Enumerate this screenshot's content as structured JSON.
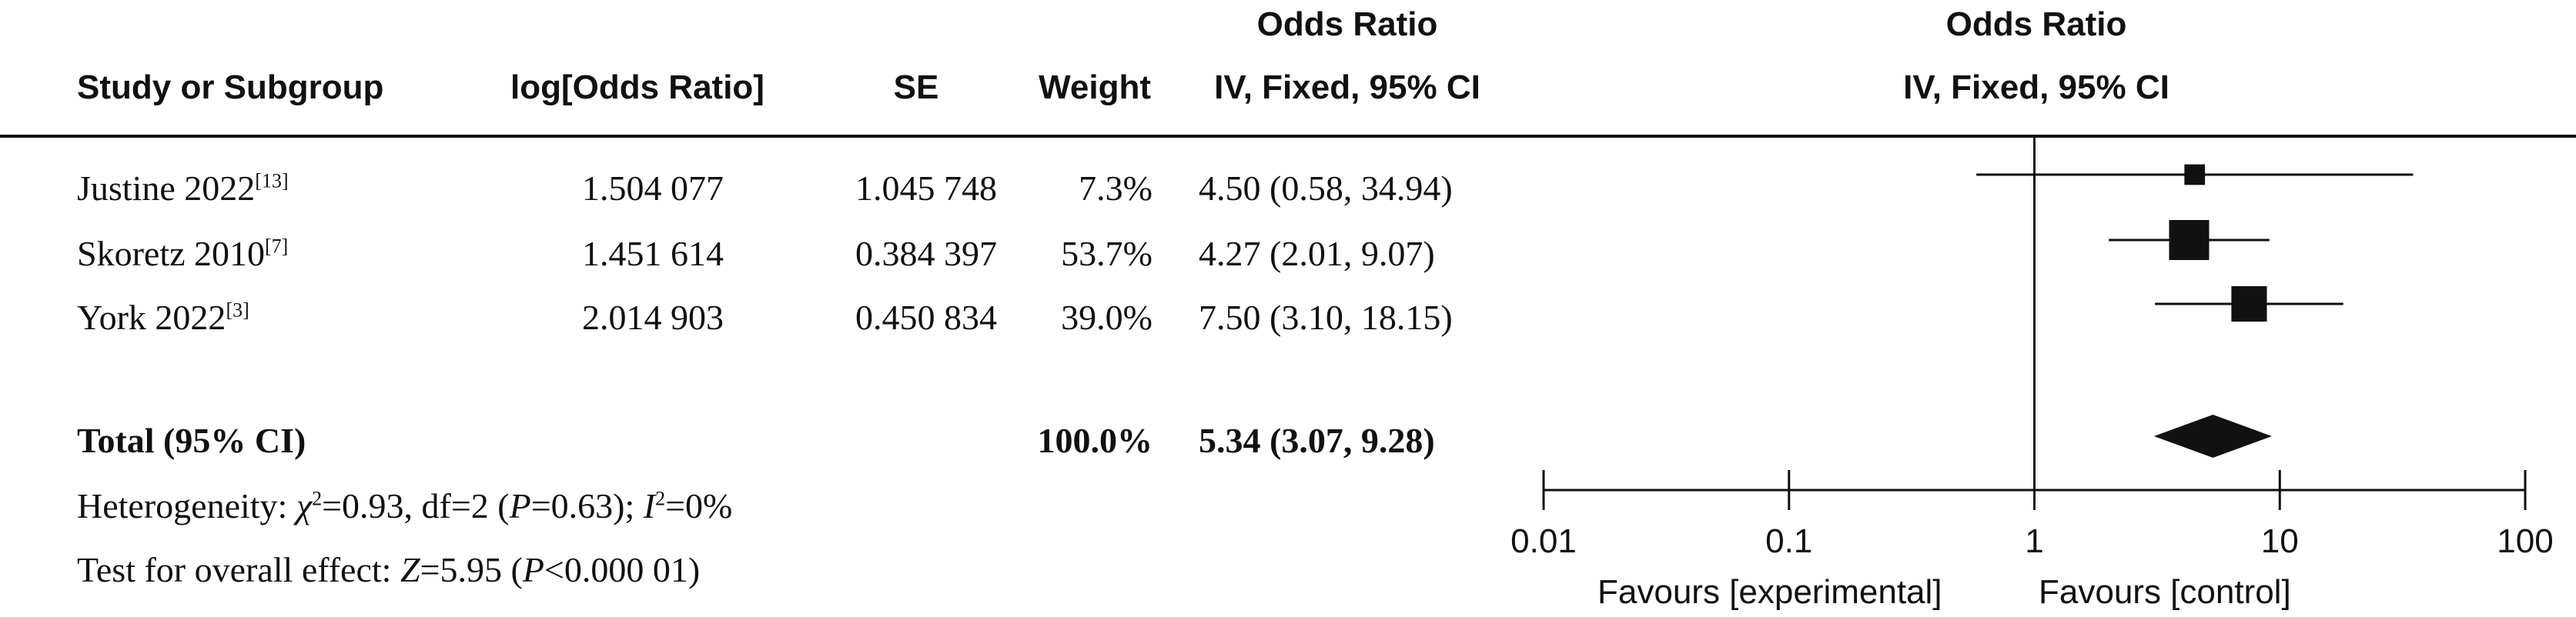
{
  "headers": {
    "study": "Study or Subgroup",
    "log_or": "log[Odds Ratio]",
    "se": "SE",
    "weight": "Weight",
    "or_title": "Odds Ratio",
    "or_method": "IV, Fixed, 95% CI",
    "plot_title": "Odds Ratio",
    "plot_method": "IV, Fixed, 95% CI"
  },
  "studies": [
    {
      "name": "Justine 2022",
      "ref": "[13]",
      "log_or": "1.504 077",
      "se": "1.045 748",
      "weight": "7.3%",
      "ci_text": "4.50 (0.58, 34.94)"
    },
    {
      "name": "Skoretz 2010",
      "ref": "[7]",
      "log_or": "1.451 614",
      "se": "0.384 397",
      "weight": "53.7%",
      "ci_text": "4.27 (2.01, 9.07)"
    },
    {
      "name": "York 2022",
      "ref": "[3]",
      "log_or": "2.014 903",
      "se": "0.450 834",
      "weight": "39.0%",
      "ci_text": "7.50 (3.10, 18.15)"
    }
  ],
  "total": {
    "label": "Total (95% CI)",
    "weight": "100.0%",
    "ci_text": "5.34 (3.07, 9.28)"
  },
  "heterogeneity": {
    "prefix": "Heterogeneity: ",
    "chi_symbol": "χ",
    "chi_rest": "=0.93, df=2 (",
    "p_symbol": "P",
    "p_rest": "=0.63); ",
    "i_symbol": "I",
    "i_rest": "=0%"
  },
  "overall_effect": {
    "prefix": "Test for overall effect: ",
    "z_symbol": "Z",
    "z_rest": "=5.95 (",
    "p_symbol": "P",
    "p_rest": "<0.000 01)"
  },
  "axis": {
    "ticks": [
      "0.01",
      "0.1",
      "1",
      "10",
      "100"
    ],
    "favours_left": "Favours [experimental]",
    "favours_right": "Favours [control]"
  },
  "chart_data": {
    "type": "forest",
    "scale": "log",
    "xlim": [
      0.01,
      100
    ],
    "null_line": 1,
    "studies": [
      {
        "name": "Justine 2022",
        "or": 4.5,
        "lower": 0.58,
        "upper": 34.94,
        "weight": 7.3
      },
      {
        "name": "Skoretz 2010",
        "or": 4.27,
        "lower": 2.01,
        "upper": 9.07,
        "weight": 53.7
      },
      {
        "name": "York 2022",
        "or": 7.5,
        "lower": 3.1,
        "upper": 18.15,
        "weight": 39.0
      }
    ],
    "pooled": {
      "or": 5.34,
      "lower": 3.07,
      "upper": 9.28
    },
    "colors": {
      "ink": "#111111"
    }
  }
}
